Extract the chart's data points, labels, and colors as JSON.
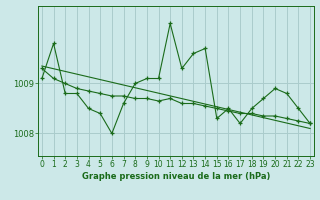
{
  "title": "Graphe pression niveau de la mer (hPa)",
  "background_color": "#cce8e8",
  "grid_color": "#aacccc",
  "line_color": "#1a6b1a",
  "tick_color": "#1a6b1a",
  "x_values": [
    0,
    1,
    2,
    3,
    4,
    5,
    6,
    7,
    8,
    9,
    10,
    11,
    12,
    13,
    14,
    15,
    16,
    17,
    18,
    19,
    20,
    21,
    22,
    23
  ],
  "series_spiky": [
    1009.1,
    1009.8,
    1008.8,
    1008.8,
    1008.5,
    1008.4,
    1008.0,
    1008.6,
    1009.0,
    1009.1,
    1009.1,
    1010.2,
    1009.3,
    1009.6,
    1009.7,
    1008.3,
    1008.5,
    1008.2,
    1008.5,
    1008.7,
    1008.9,
    1008.8,
    1008.5,
    1008.2
  ],
  "series_smooth": [
    1009.3,
    1009.1,
    1009.0,
    1008.9,
    1008.85,
    1008.8,
    1008.75,
    1008.75,
    1008.7,
    1008.7,
    1008.65,
    1008.7,
    1008.6,
    1008.6,
    1008.55,
    1008.5,
    1008.45,
    1008.4,
    1008.4,
    1008.35,
    1008.35,
    1008.3,
    1008.25,
    1008.2
  ],
  "trend_x": [
    0,
    23
  ],
  "trend_y": [
    1009.35,
    1008.1
  ],
  "ytick_values": [
    1008,
    1009
  ],
  "ytick_labels": [
    "1008",
    "1009"
  ],
  "ylim": [
    1007.55,
    1010.55
  ],
  "xlim": [
    -0.3,
    23.3
  ],
  "title_fontsize": 6.0,
  "tick_fontsize": 5.5,
  "ytick_fontsize": 6.0
}
